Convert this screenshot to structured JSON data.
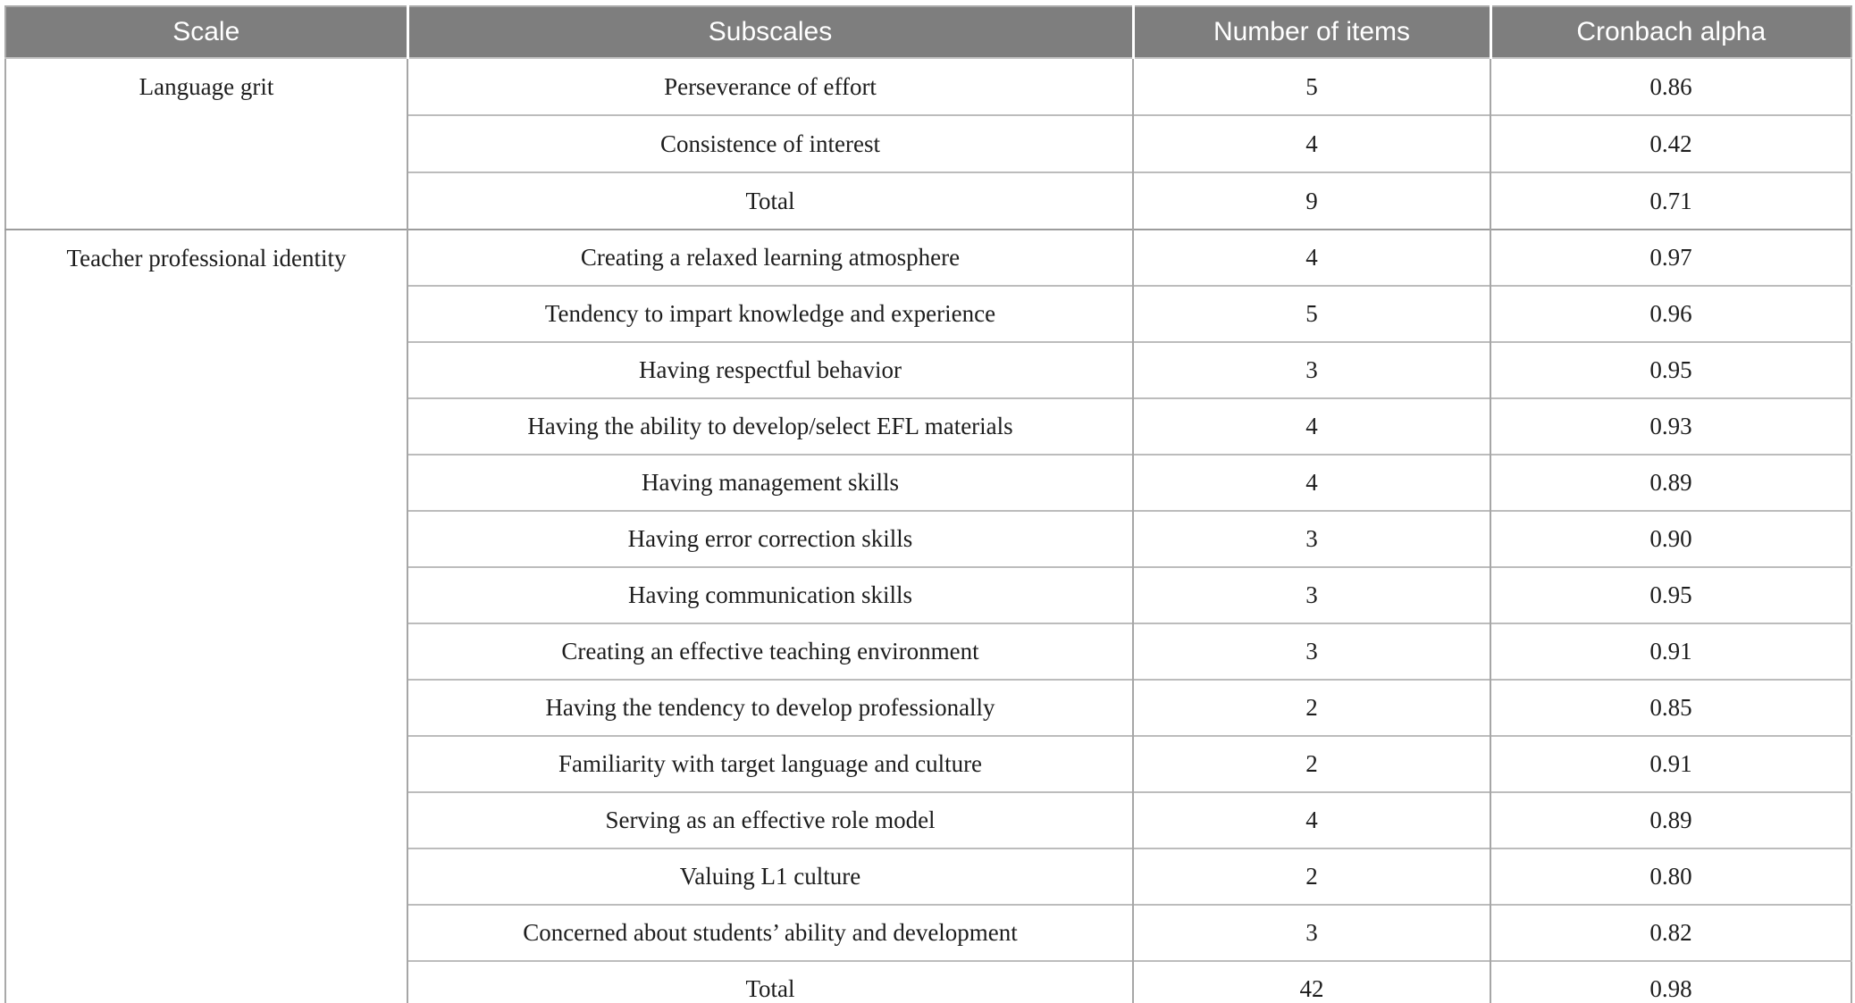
{
  "table": {
    "columns": [
      "Scale",
      "Subscales",
      "Number of items",
      "Cronbach alpha"
    ],
    "sections": [
      {
        "scale": "Language grit",
        "rows": [
          {
            "subscale": "Perseverance of effort",
            "items": "5",
            "alpha": "0.86"
          },
          {
            "subscale": "Consistence of interest",
            "items": "4",
            "alpha": "0.42"
          },
          {
            "subscale": "Total",
            "items": "9",
            "alpha": "0.71"
          }
        ]
      },
      {
        "scale": "Teacher professional identity",
        "rows": [
          {
            "subscale": "Creating a relaxed learning atmosphere",
            "items": "4",
            "alpha": "0.97"
          },
          {
            "subscale": "Tendency to impart knowledge and experience",
            "items": "5",
            "alpha": "0.96"
          },
          {
            "subscale": "Having respectful behavior",
            "items": "3",
            "alpha": "0.95"
          },
          {
            "subscale": "Having the ability to develop/select EFL materials",
            "items": "4",
            "alpha": "0.93"
          },
          {
            "subscale": "Having management skills",
            "items": "4",
            "alpha": "0.89"
          },
          {
            "subscale": "Having error correction skills",
            "items": "3",
            "alpha": "0.90"
          },
          {
            "subscale": "Having communication skills",
            "items": "3",
            "alpha": "0.95"
          },
          {
            "subscale": "Creating an effective teaching environment",
            "items": "3",
            "alpha": "0.91"
          },
          {
            "subscale": "Having the tendency to develop professionally",
            "items": "2",
            "alpha": "0.85"
          },
          {
            "subscale": "Familiarity with target language and culture",
            "items": "2",
            "alpha": "0.91"
          },
          {
            "subscale": "Serving as an effective role model",
            "items": "4",
            "alpha": "0.89"
          },
          {
            "subscale": "Valuing L1 culture",
            "items": "2",
            "alpha": "0.80"
          },
          {
            "subscale": "Concerned about students’ ability and development",
            "items": "3",
            "alpha": "0.82"
          },
          {
            "subscale": "Total",
            "items": "42",
            "alpha": "0.98"
          }
        ]
      }
    ],
    "colors": {
      "header_bg": "#7e7e7e",
      "header_text": "#ffffff",
      "body_text": "#1d1d1d",
      "row_divider": "#bcbcbc",
      "section_divider": "#9c9c9c",
      "column_divider": "#a6a6a6",
      "outer_border": "#a9a9a9",
      "bottom_border": "#a3a3a3"
    }
  }
}
